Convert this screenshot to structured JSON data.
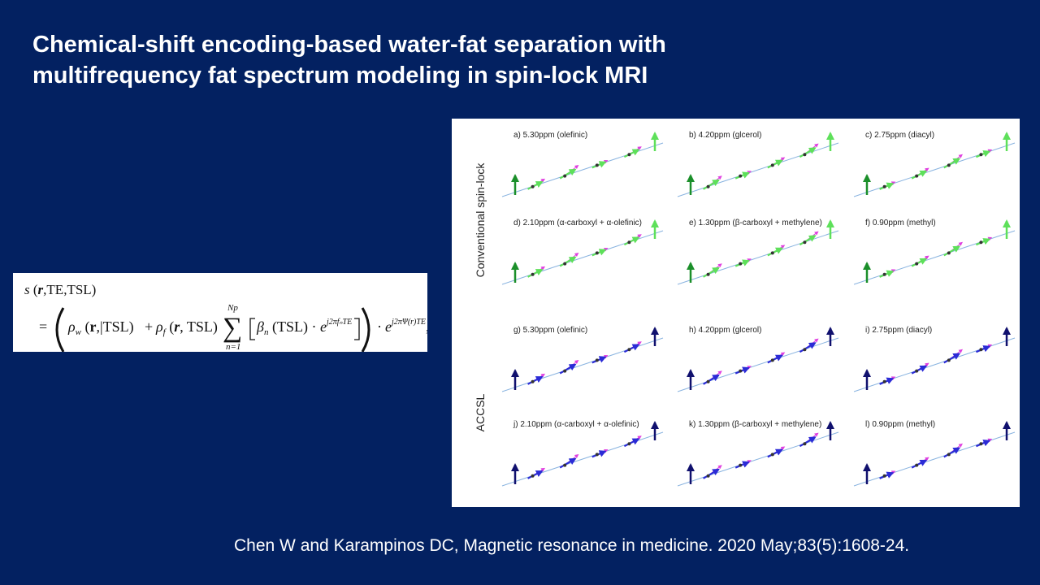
{
  "slide": {
    "title_line1": "Chemical-shift encoding-based water-fat separation with",
    "title_line2": "multifrequency fat spectrum modeling in spin-lock MRI",
    "citation": "Chen W and Karampinos DC, Magnetic resonance in medicine. 2020 May;83(5):1608-24."
  },
  "equation": {
    "lhs_s": "s",
    "lhs_args_open": " (",
    "lhs_r": "r",
    "lhs_args_rest": ",TE,TSL)",
    "equals": "=",
    "rho": "ρ",
    "sub_w": "w",
    "sub_f": "f",
    "bold_r": "r",
    "term_w_rest": ",|TSL)",
    "plus": "+",
    "term_f_rest": ", TSL)",
    "sigma": "∑",
    "sum_upper": "Np",
    "sum_lower": "n=1",
    "beta": "β",
    "sub_n": "n",
    "beta_rest": " (TSL) · ",
    "e": "e",
    "exp1": "j2πfₙTE",
    "dot": "·",
    "exp2": "j2πΨ(r)TE",
    "comma": ","
  },
  "figure": {
    "row_label_top": "Conventional spin-lock",
    "row_label_bottom": "ACCSL",
    "panels": [
      "a) 5.30ppm (olefinic)",
      "b) 4.20ppm (glcerol)",
      "c) 2.75ppm (diacyl)",
      "d) 2.10ppm (α-carboxyl + α-olefinic)",
      "e) 1.30ppm (β-carboxyl  + methylene)",
      "f) 0.90ppm (methyl)",
      "g) 5.30ppm (olefinic)",
      "h) 4.20ppm (glcerol)",
      "i) 2.75ppm (diacyl)",
      "j) 2.10ppm (α-carboxyl + α-olefinic)",
      "k) 1.30ppm (β-carboxyl + methylene)",
      "l) 0.90ppm (methyl)"
    ],
    "colors": {
      "axis": "#8ab4e0",
      "green": "#1b8f2a",
      "green_light": "#5ee05a",
      "magenta": "#e040e0",
      "navy": "#10106e",
      "blue": "#2b2bd6",
      "dark": "#333333"
    }
  }
}
